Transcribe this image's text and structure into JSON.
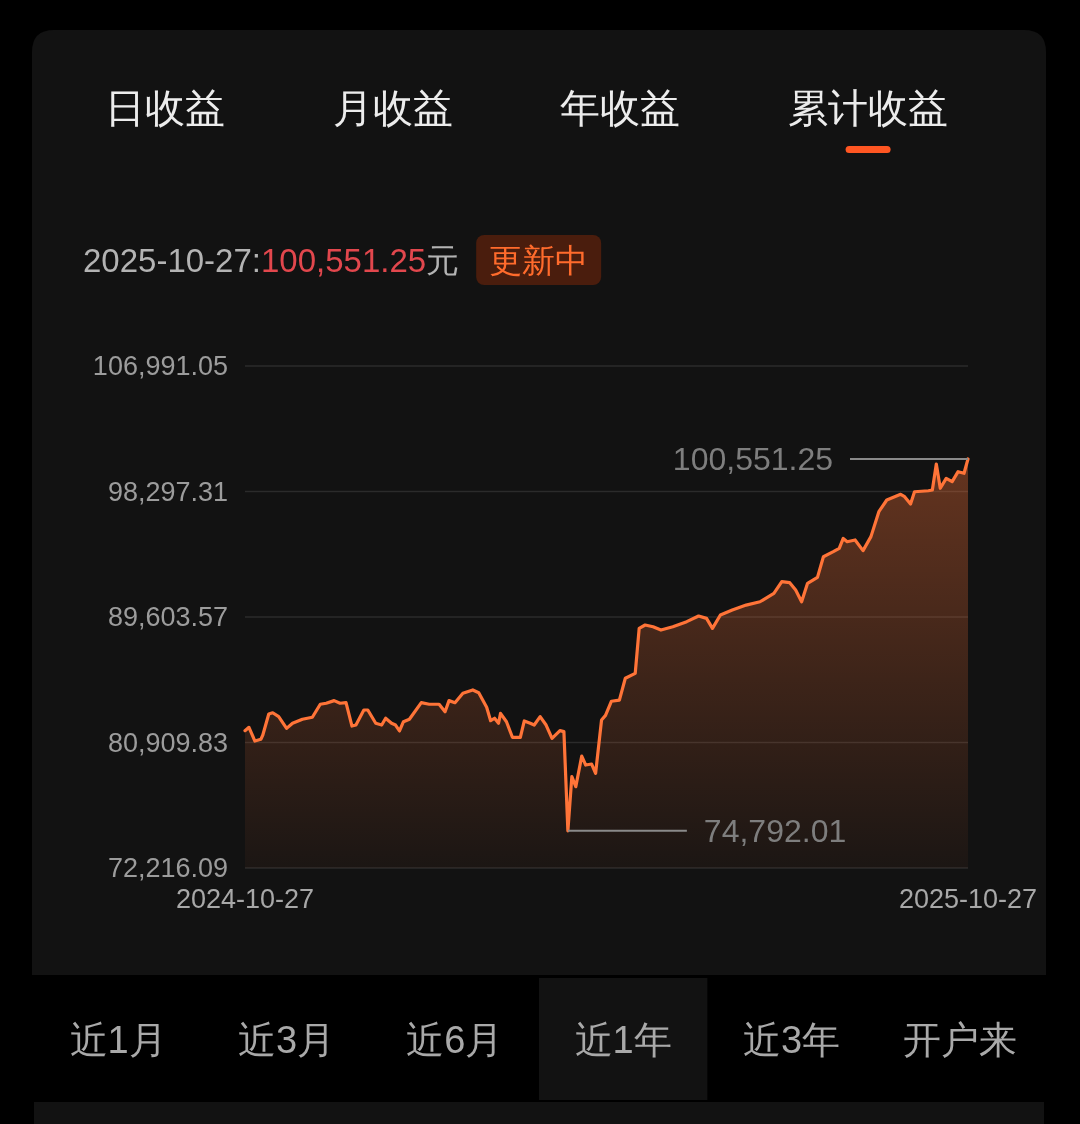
{
  "chart_data": {
    "type": "area",
    "subtitle": "2025-10-27:100,551.25元",
    "annotations": [
      "日收益",
      "月收益",
      "年收益",
      "累计收益",
      "更新中",
      "近1月",
      "近3月",
      "近6月",
      "近1年",
      "近3年",
      "开户来",
      "100,551.25",
      "74,792.01"
    ],
    "x": [
      "2024-10-27",
      "2024-10-29",
      "2024-11-01",
      "2024-11-04",
      "2024-11-05",
      "2024-11-08",
      "2024-11-10",
      "2024-11-13",
      "2024-11-17",
      "2024-11-20",
      "2024-11-25",
      "2024-11-30",
      "2024-12-04",
      "2024-12-07",
      "2024-12-11",
      "2024-12-14",
      "2024-12-17",
      "2024-12-20",
      "2024-12-22",
      "2024-12-26",
      "2024-12-28",
      "2025-01-01",
      "2025-01-04",
      "2025-01-06",
      "2025-01-09",
      "2025-01-11",
      "2025-01-13",
      "2025-01-15",
      "2025-01-18",
      "2025-01-24",
      "2025-01-28",
      "2025-02-02",
      "2025-02-05",
      "2025-02-07",
      "2025-02-10",
      "2025-02-14",
      "2025-02-19",
      "2025-02-22",
      "2025-02-26",
      "2025-02-28",
      "2025-03-02",
      "2025-03-04",
      "2025-03-05",
      "2025-03-08",
      "2025-03-11",
      "2025-03-15",
      "2025-03-17",
      "2025-03-20",
      "2025-03-22",
      "2025-03-25",
      "2025-03-28",
      "2025-03-31",
      "2025-04-04",
      "2025-04-06",
      "2025-04-08",
      "2025-04-10",
      "2025-04-12",
      "2025-04-15",
      "2025-04-17",
      "2025-04-20",
      "2025-04-22",
      "2025-04-25",
      "2025-04-27",
      "2025-04-30",
      "2025-05-04",
      "2025-05-07",
      "2025-05-12",
      "2025-05-14",
      "2025-05-17",
      "2025-05-21",
      "2025-05-25",
      "2025-05-31",
      "2025-06-07",
      "2025-06-13",
      "2025-06-17",
      "2025-06-20",
      "2025-06-24",
      "2025-06-30",
      "2025-07-07",
      "2025-07-14",
      "2025-07-21",
      "2025-07-25",
      "2025-07-29",
      "2025-08-01",
      "2025-08-04",
      "2025-08-07",
      "2025-08-12",
      "2025-08-15",
      "2025-08-20",
      "2025-08-23",
      "2025-08-25",
      "2025-08-27",
      "2025-08-31",
      "2025-09-04",
      "2025-09-08",
      "2025-09-12",
      "2025-09-16",
      "2025-09-23",
      "2025-09-25",
      "2025-09-28",
      "2025-09-30",
      "2025-10-07",
      "2025-10-09",
      "2025-10-11",
      "2025-10-13",
      "2025-10-16",
      "2025-10-19",
      "2025-10-22",
      "2025-10-25",
      "2025-10-27"
    ],
    "values": [
      81730,
      81960,
      81010,
      81130,
      81430,
      82880,
      82970,
      82700,
      81890,
      82240,
      82520,
      82660,
      83560,
      83630,
      83810,
      83630,
      83670,
      82050,
      82120,
      83160,
      83160,
      82240,
      82120,
      82590,
      82240,
      82120,
      81710,
      82350,
      82520,
      83670,
      83560,
      83560,
      83040,
      83810,
      83670,
      84320,
      84550,
      84360,
      83350,
      82420,
      82590,
      82240,
      82930,
      82350,
      81270,
      81270,
      82400,
      82240,
      82120,
      82700,
      82120,
      81200,
      81730,
      81660,
      74792.01,
      78540,
      77850,
      79970,
      79350,
      79420,
      78780,
      82470,
      82790,
      83770,
      83850,
      85360,
      85700,
      88820,
      89050,
      88930,
      88700,
      88930,
      89280,
      89670,
      89510,
      88820,
      89740,
      90090,
      90430,
      90660,
      91240,
      92050,
      91980,
      91470,
      90660,
      91940,
      92350,
      93780,
      94130,
      94360,
      95050,
      94820,
      94940,
      94200,
      95170,
      96900,
      97710,
      98100,
      97940,
      97430,
      98280,
      98350,
      98400,
      100200,
      98520,
      99210,
      98980,
      99670,
      99560,
      100551.25
    ],
    "color": "#ff7438",
    "xlim": [
      "2024-10-27",
      "2025-10-27"
    ],
    "xticks": [
      "2024-10-27",
      "2025-10-27"
    ],
    "ylim": [
      72216.09,
      106991.05
    ],
    "yticks": [
      {
        "value": 72216.09,
        "label": "72,216.09"
      },
      {
        "value": 80909.83,
        "label": "80,909.83"
      },
      {
        "value": 89603.57,
        "label": "89,603.57"
      },
      {
        "value": 98297.31,
        "label": "98,297.31"
      },
      {
        "value": 106991.05,
        "label": "106,991.05"
      }
    ],
    "grid": "y"
  }
}
